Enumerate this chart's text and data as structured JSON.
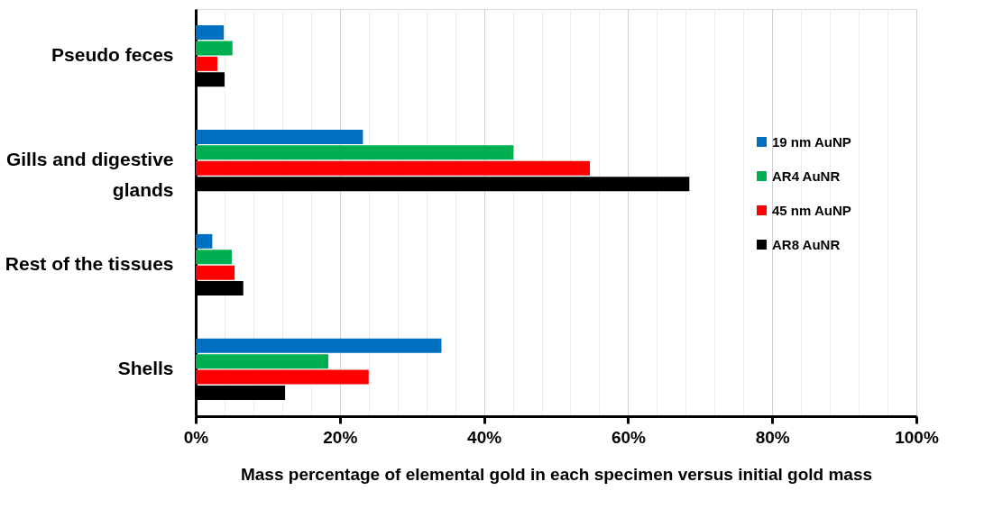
{
  "chart_data": {
    "type": "bar",
    "orientation": "horizontal",
    "xlabel": "Mass percentage of elemental gold in each specimen versus initial gold mass",
    "categories": [
      "Pseudo feces",
      "Gills and digestive glands",
      "Rest of the tissues",
      "Shells"
    ],
    "series": [
      {
        "name": "19 nm AuNP",
        "color": "#0070c0",
        "values": [
          3.9,
          23.2,
          2.3,
          34.1
        ]
      },
      {
        "name": "AR4 AuNR",
        "color": "#00b050",
        "values": [
          5.1,
          44.1,
          5.0,
          18.4
        ]
      },
      {
        "name": "45 nm AuNP",
        "color": "#ff0000",
        "values": [
          3.0,
          54.7,
          5.4,
          24.0
        ]
      },
      {
        "name": "AR8 AuNR",
        "color": "#000000",
        "values": [
          4.0,
          68.5,
          6.6,
          12.4
        ]
      }
    ],
    "xlim": [
      0,
      100
    ],
    "xticks": [
      {
        "value": 0,
        "label": "0%"
      },
      {
        "value": 4,
        "label": null
      },
      {
        "value": 8,
        "label": null
      },
      {
        "value": 12,
        "label": null
      },
      {
        "value": 16,
        "label": null
      },
      {
        "value": 20,
        "label": "20%"
      },
      {
        "value": 24,
        "label": null
      },
      {
        "value": 28,
        "label": null
      },
      {
        "value": 32,
        "label": null
      },
      {
        "value": 36,
        "label": null
      },
      {
        "value": 40,
        "label": "40%"
      },
      {
        "value": 44,
        "label": null
      },
      {
        "value": 48,
        "label": null
      },
      {
        "value": 52,
        "label": null
      },
      {
        "value": 56,
        "label": null
      },
      {
        "value": 60,
        "label": "60%"
      },
      {
        "value": 64,
        "label": null
      },
      {
        "value": 68,
        "label": null
      },
      {
        "value": 72,
        "label": null
      },
      {
        "value": 76,
        "label": null
      },
      {
        "value": 80,
        "label": "80%"
      },
      {
        "value": 84,
        "label": null
      },
      {
        "value": 88,
        "label": null
      },
      {
        "value": 92,
        "label": null
      },
      {
        "value": 96,
        "label": null
      },
      {
        "value": 100,
        "label": "100%"
      }
    ],
    "grid": "x",
    "legend": "right"
  }
}
